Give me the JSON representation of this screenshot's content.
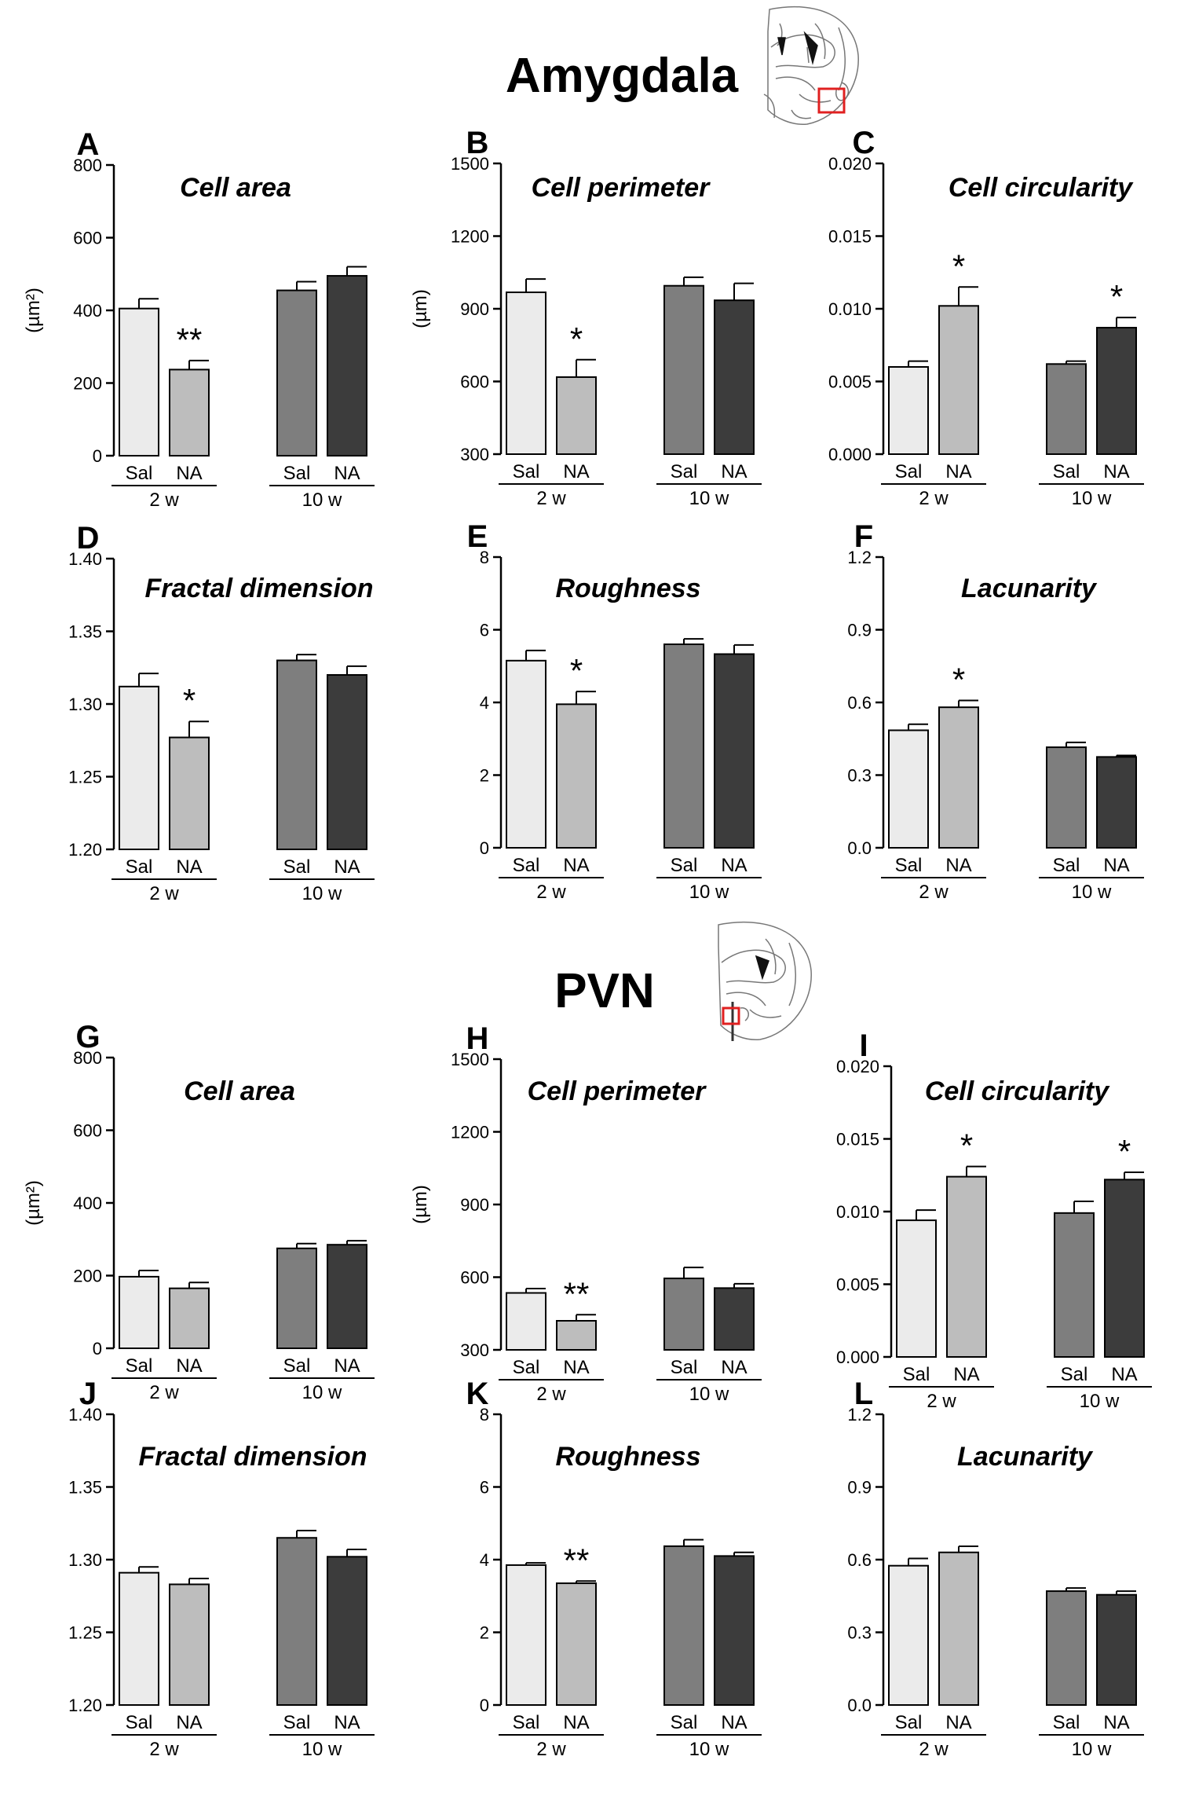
{
  "sections": [
    {
      "title": "Amygdala",
      "region": "amygdala"
    },
    {
      "title": "PVN",
      "region": "pvn"
    }
  ],
  "bar_colors": [
    "#ebebeb",
    "#bdbdbd",
    "#7e7e7e",
    "#3c3c3c"
  ],
  "group_labels": [
    "2 w",
    "10 w"
  ],
  "chart_data": [
    {
      "panel": "A",
      "type": "bar",
      "title": "Cell area",
      "ylabel": "(µm²)",
      "ylim": [
        0,
        800
      ],
      "yticks": [
        0,
        200,
        400,
        600,
        800
      ],
      "ytick_labels": [
        "0",
        "200",
        "400",
        "600",
        "800"
      ],
      "categories": [
        "Sal",
        "NA",
        "Sal",
        "NA"
      ],
      "groups": [
        "2 w",
        "10 w"
      ],
      "values": [
        405,
        237,
        455,
        495
      ],
      "errors": [
        27,
        25,
        24,
        25
      ],
      "annotations": [
        "",
        "**",
        "",
        ""
      ]
    },
    {
      "panel": "B",
      "type": "bar",
      "title": "Cell perimeter",
      "ylabel": "(µm)",
      "ylim": [
        300,
        1500
      ],
      "yticks": [
        300,
        600,
        900,
        1200,
        1500
      ],
      "ytick_labels": [
        "300",
        "600",
        "900",
        "1200",
        "1500"
      ],
      "categories": [
        "Sal",
        "NA",
        "Sal",
        "NA"
      ],
      "groups": [
        "2 w",
        "10 w"
      ],
      "values": [
        968,
        618,
        995,
        935
      ],
      "errors": [
        55,
        72,
        35,
        70
      ],
      "annotations": [
        "",
        "*",
        "",
        ""
      ]
    },
    {
      "panel": "C",
      "type": "bar",
      "title": "Cell circularity",
      "ylabel": "",
      "ylim": [
        0,
        0.02
      ],
      "yticks": [
        0,
        0.005,
        0.01,
        0.015,
        0.02
      ],
      "ytick_labels": [
        "0.000",
        "0.005",
        "0.010",
        "0.015",
        "0.020"
      ],
      "categories": [
        "Sal",
        "NA",
        "Sal",
        "NA"
      ],
      "groups": [
        "2 w",
        "10 w"
      ],
      "values": [
        0.006,
        0.0102,
        0.0062,
        0.0087
      ],
      "errors": [
        0.0004,
        0.0013,
        0.0002,
        0.0007
      ],
      "annotations": [
        "",
        "*",
        "",
        "*"
      ]
    },
    {
      "panel": "D",
      "type": "bar",
      "title": "Fractal dimension",
      "ylabel": "",
      "ylim": [
        1.2,
        1.4
      ],
      "yticks": [
        1.2,
        1.25,
        1.3,
        1.35,
        1.4
      ],
      "ytick_labels": [
        "1.20",
        "1.25",
        "1.30",
        "1.35",
        "1.40"
      ],
      "categories": [
        "Sal",
        "NA",
        "Sal",
        "NA"
      ],
      "groups": [
        "2 w",
        "10 w"
      ],
      "values": [
        1.312,
        1.277,
        1.33,
        1.32
      ],
      "errors": [
        0.009,
        0.011,
        0.004,
        0.006
      ],
      "annotations": [
        "",
        "*",
        "",
        ""
      ]
    },
    {
      "panel": "E",
      "type": "bar",
      "title": "Roughness",
      "ylabel": "",
      "ylim": [
        0,
        8
      ],
      "yticks": [
        0,
        2,
        4,
        6,
        8
      ],
      "ytick_labels": [
        "0",
        "2",
        "4",
        "6",
        "8"
      ],
      "categories": [
        "Sal",
        "NA",
        "Sal",
        "NA"
      ],
      "groups": [
        "2 w",
        "10 w"
      ],
      "values": [
        5.15,
        3.95,
        5.6,
        5.33
      ],
      "errors": [
        0.28,
        0.35,
        0.15,
        0.25
      ],
      "annotations": [
        "",
        "*",
        "",
        ""
      ]
    },
    {
      "panel": "F",
      "type": "bar",
      "title": "Lacunarity",
      "ylabel": "",
      "ylim": [
        0,
        1.2
      ],
      "yticks": [
        0,
        0.3,
        0.6,
        0.9,
        1.2
      ],
      "ytick_labels": [
        "0.0",
        "0.3",
        "0.6",
        "0.9",
        "1.2"
      ],
      "categories": [
        "Sal",
        "NA",
        "Sal",
        "NA"
      ],
      "groups": [
        "2 w",
        "10 w"
      ],
      "values": [
        0.485,
        0.58,
        0.415,
        0.375
      ],
      "errors": [
        0.025,
        0.028,
        0.02,
        0.006
      ],
      "annotations": [
        "",
        "*",
        "",
        ""
      ]
    },
    {
      "panel": "G",
      "type": "bar",
      "title": "Cell area",
      "ylabel": "(µm²)",
      "ylim": [
        0,
        800
      ],
      "yticks": [
        0,
        200,
        400,
        600,
        800
      ],
      "ytick_labels": [
        "0",
        "200",
        "400",
        "600",
        "800"
      ],
      "categories": [
        "Sal",
        "NA",
        "Sal",
        "NA"
      ],
      "groups": [
        "2 w",
        "10 w"
      ],
      "values": [
        197,
        165,
        275,
        285
      ],
      "errors": [
        17,
        16,
        13,
        11
      ],
      "annotations": [
        "",
        "",
        "",
        ""
      ]
    },
    {
      "panel": "H",
      "type": "bar",
      "title": "Cell perimeter",
      "ylabel": "(µm)",
      "ylim": [
        300,
        1500
      ],
      "yticks": [
        300,
        600,
        900,
        1200,
        1500
      ],
      "ytick_labels": [
        "300",
        "600",
        "900",
        "1200",
        "1500"
      ],
      "categories": [
        "Sal",
        "NA",
        "Sal",
        "NA"
      ],
      "groups": [
        "2 w",
        "10 w"
      ],
      "values": [
        535,
        420,
        595,
        555
      ],
      "errors": [
        18,
        25,
        45,
        18
      ],
      "annotations": [
        "",
        "**",
        "",
        ""
      ]
    },
    {
      "panel": "I",
      "type": "bar",
      "title": "Cell circularity",
      "ylabel": "",
      "ylim": [
        0,
        0.02
      ],
      "yticks": [
        0,
        0.005,
        0.01,
        0.015,
        0.02
      ],
      "ytick_labels": [
        "0.000",
        "0.005",
        "0.010",
        "0.015",
        "0.020"
      ],
      "categories": [
        "Sal",
        "NA",
        "Sal",
        "NA"
      ],
      "groups": [
        "2 w",
        "10 w"
      ],
      "values": [
        0.0094,
        0.0124,
        0.0099,
        0.0122
      ],
      "errors": [
        0.0007,
        0.0007,
        0.0008,
        0.0005
      ],
      "annotations": [
        "",
        "*",
        "",
        "*"
      ]
    },
    {
      "panel": "J",
      "type": "bar",
      "title": "Fractal dimension",
      "ylabel": "",
      "ylim": [
        1.2,
        1.4
      ],
      "yticks": [
        1.2,
        1.25,
        1.3,
        1.35,
        1.4
      ],
      "ytick_labels": [
        "1.20",
        "1.25",
        "1.30",
        "1.35",
        "1.40"
      ],
      "categories": [
        "Sal",
        "NA",
        "Sal",
        "NA"
      ],
      "groups": [
        "2 w",
        "10 w"
      ],
      "values": [
        1.291,
        1.283,
        1.315,
        1.302
      ],
      "errors": [
        0.004,
        0.004,
        0.005,
        0.005
      ],
      "annotations": [
        "",
        "",
        "",
        ""
      ]
    },
    {
      "panel": "K",
      "type": "bar",
      "title": "Roughness",
      "ylabel": "",
      "ylim": [
        0,
        8
      ],
      "yticks": [
        0,
        2,
        4,
        6,
        8
      ],
      "ytick_labels": [
        "0",
        "2",
        "4",
        "6",
        "8"
      ],
      "categories": [
        "Sal",
        "NA",
        "Sal",
        "NA"
      ],
      "groups": [
        "2 w",
        "10 w"
      ],
      "values": [
        3.85,
        3.35,
        4.37,
        4.1
      ],
      "errors": [
        0.06,
        0.06,
        0.18,
        0.1
      ],
      "annotations": [
        "",
        "**",
        "",
        ""
      ]
    },
    {
      "panel": "L",
      "type": "bar",
      "title": "Lacunarity",
      "ylabel": "",
      "ylim": [
        0,
        1.2
      ],
      "yticks": [
        0,
        0.3,
        0.6,
        0.9,
        1.2
      ],
      "ytick_labels": [
        "0.0",
        "0.3",
        "0.6",
        "0.9",
        "1.2"
      ],
      "categories": [
        "Sal",
        "NA",
        "Sal",
        "NA"
      ],
      "groups": [
        "2 w",
        "10 w"
      ],
      "values": [
        0.575,
        0.63,
        0.47,
        0.455
      ],
      "errors": [
        0.03,
        0.025,
        0.013,
        0.015
      ],
      "annotations": [
        "",
        "",
        "",
        ""
      ]
    }
  ]
}
